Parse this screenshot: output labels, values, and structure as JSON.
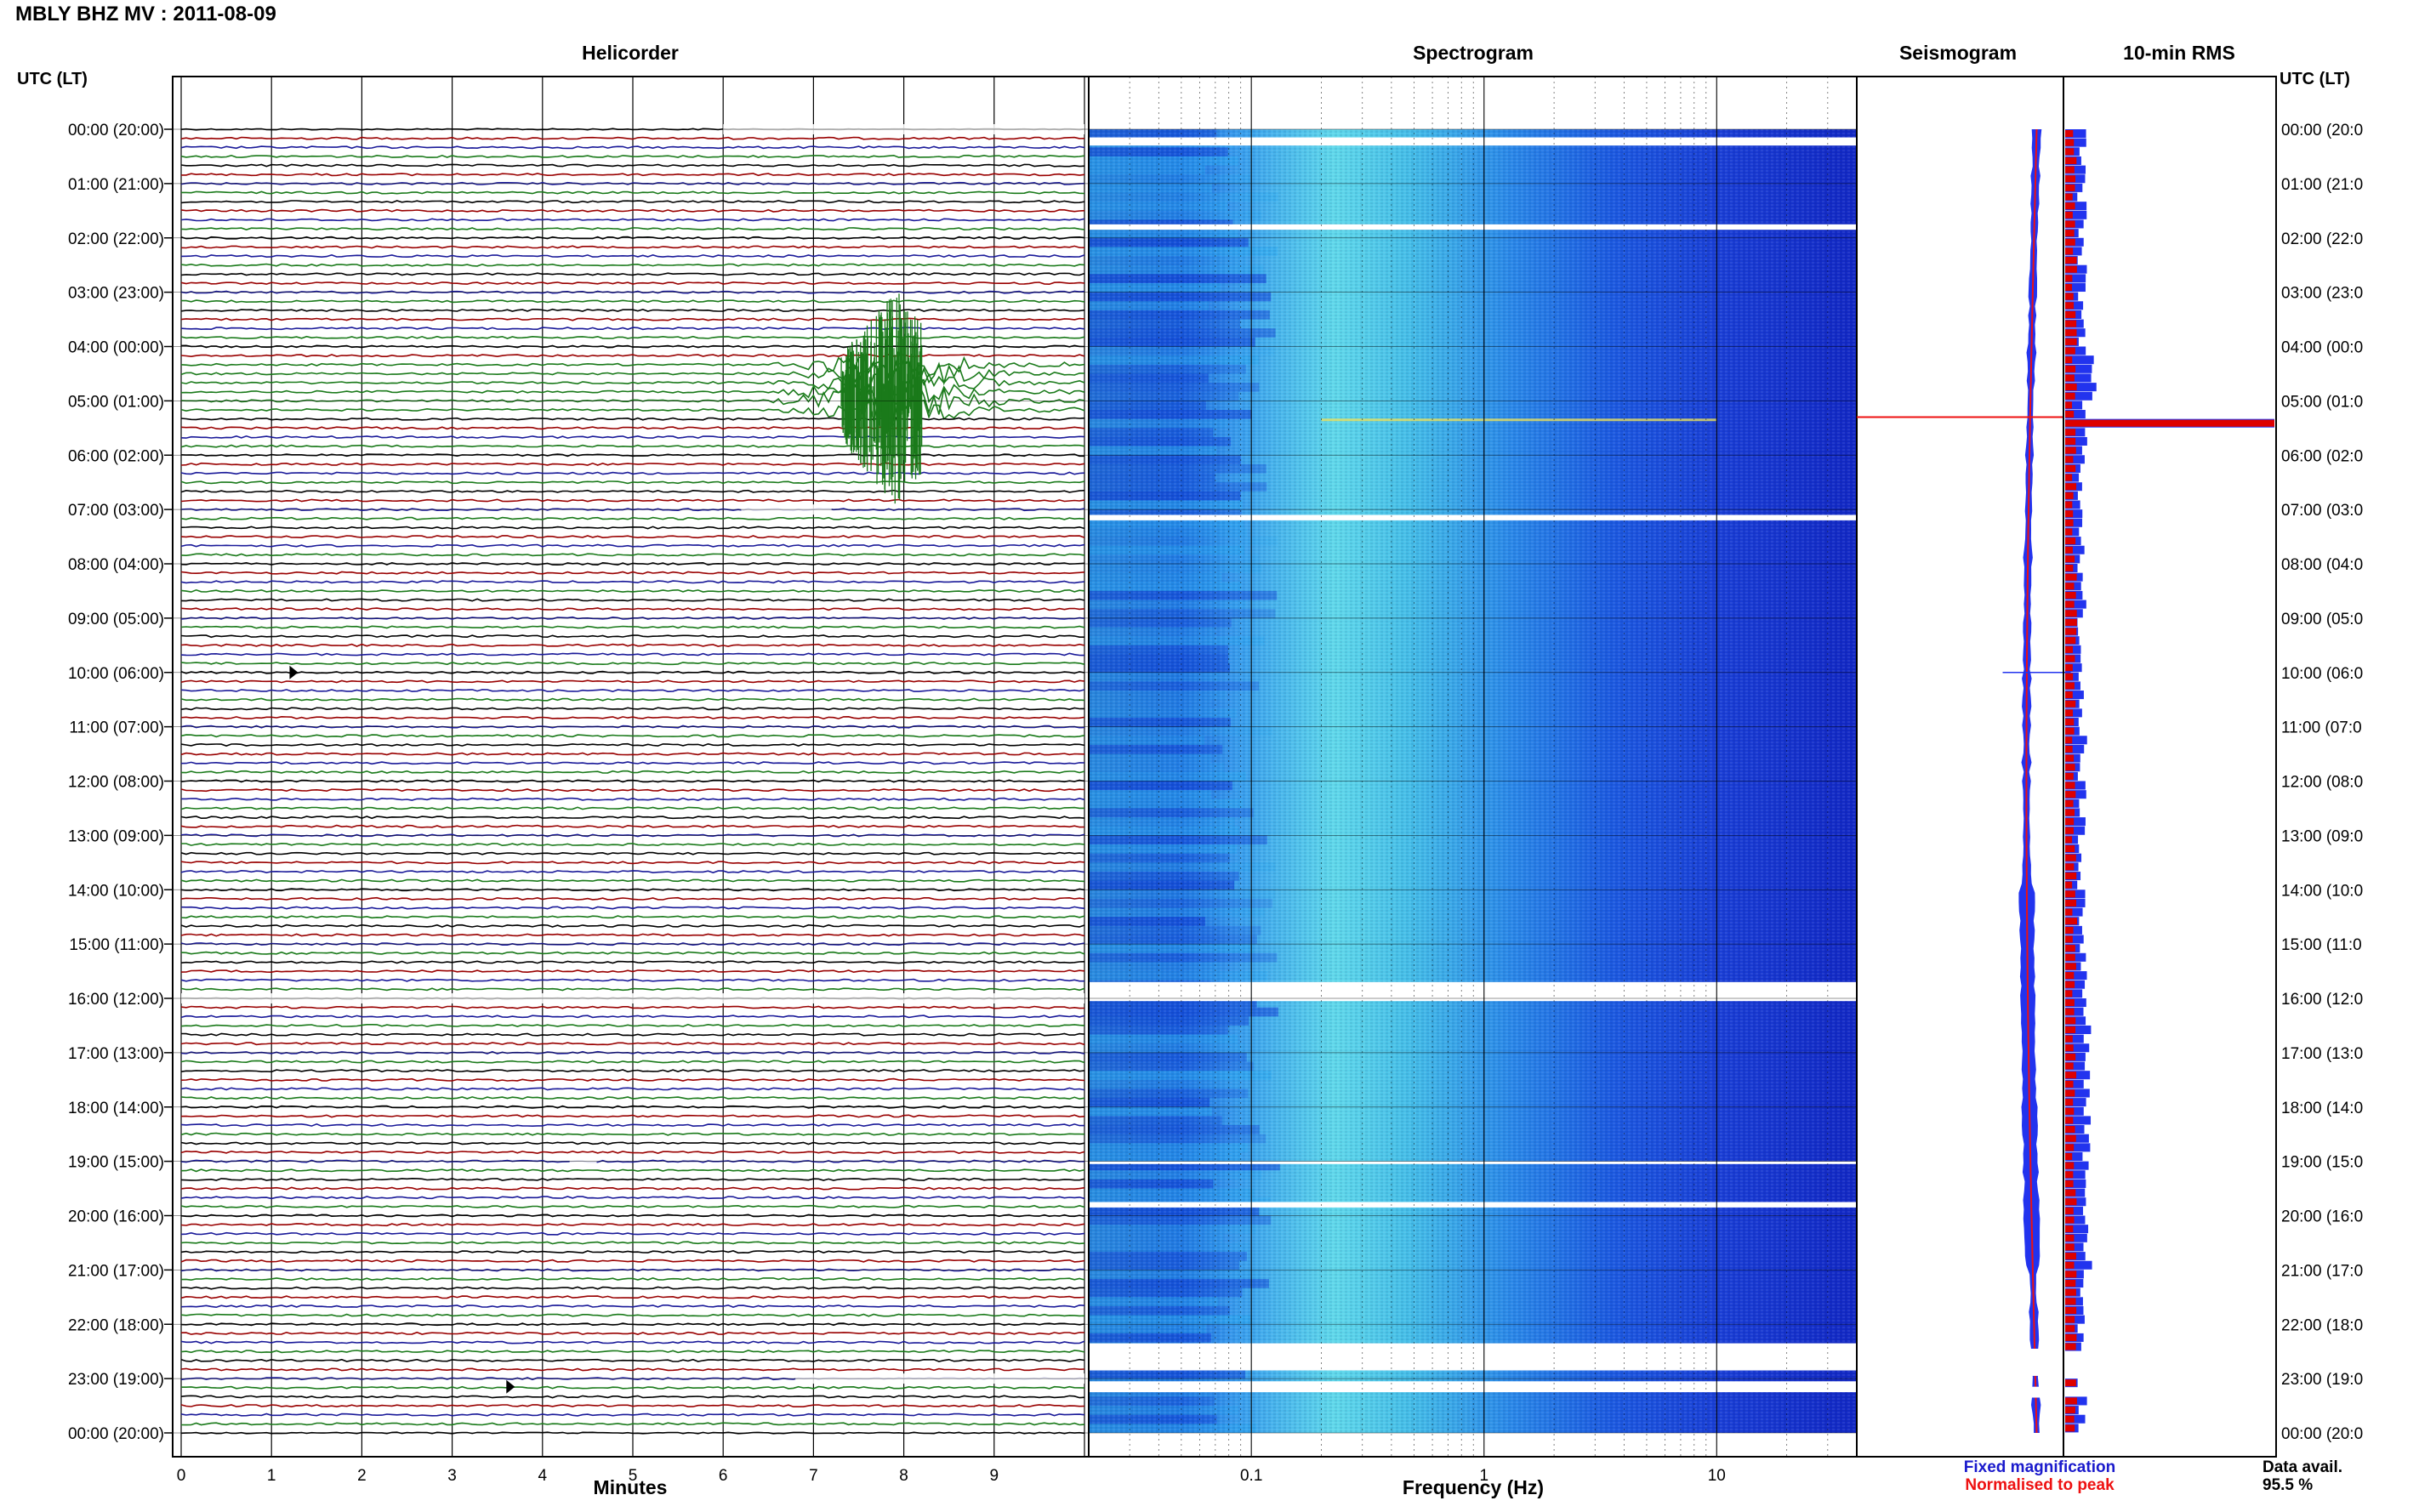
{
  "header": {
    "title": "MBLY BHZ MV : 2011-08-09"
  },
  "panels": {
    "helicorder": "Helicorder",
    "spectrogram": "Spectrogram",
    "seismogram": "Seismogram",
    "rms": "10-min RMS"
  },
  "axes": {
    "left_time_label": "UTC (LT)",
    "right_time_label": "UTC (LT)",
    "minutes_label": "Minutes",
    "frequency_label": "Frequency (Hz)"
  },
  "time_labels_left": [
    "00:00 (20:00)",
    "01:00 (21:00)",
    "02:00 (22:00)",
    "03:00 (23:00)",
    "04:00 (00:00)",
    "05:00 (01:00)",
    "06:00 (02:00)",
    "07:00 (03:00)",
    "08:00 (04:00)",
    "09:00 (05:00)",
    "10:00 (06:00)",
    "11:00 (07:00)",
    "12:00 (08:00)",
    "13:00 (09:00)",
    "14:00 (10:00)",
    "15:00 (11:00)",
    "16:00 (12:00)",
    "17:00 (13:00)",
    "18:00 (14:00)",
    "19:00 (15:00)",
    "20:00 (16:00)",
    "21:00 (17:00)",
    "22:00 (18:00)",
    "23:00 (19:00)",
    "00:00 (20:00)"
  ],
  "time_labels_right": [
    "00:00 (20:0",
    "01:00 (21:0",
    "02:00 (22:0",
    "03:00 (23:0",
    "04:00 (00:0",
    "05:00 (01:0",
    "06:00 (02:0",
    "07:00 (03:0",
    "08:00 (04:0",
    "09:00 (05:0",
    "10:00 (06:0",
    "11:00 (07:0",
    "12:00 (08:0",
    "13:00 (09:0",
    "14:00 (10:0",
    "15:00 (11:0",
    "16:00 (12:0",
    "17:00 (13:0",
    "18:00 (14:0",
    "19:00 (15:0",
    "20:00 (16:0",
    "21:00 (17:0",
    "22:00 (18:0",
    "23:00 (19:0",
    "00:00 (20:0"
  ],
  "minute_ticks": [
    "0",
    "1",
    "2",
    "3",
    "4",
    "5",
    "6",
    "7",
    "8",
    "9"
  ],
  "frequency_ticks": [
    "0.1",
    "1",
    "10"
  ],
  "legend": {
    "fixed": "Fixed magnification",
    "normalised": "Normalised to peak",
    "fixed_color": "#1a1acc",
    "normalised_color": "#ee1111"
  },
  "data_availability": {
    "label": "Data avail.",
    "value": "95.5 %"
  },
  "colors": {
    "trace_cycle": [
      "#000000",
      "#990000",
      "#1a1a99",
      "#1a7a1a"
    ],
    "spectrogram_low": "#0022cc",
    "spectrogram_high": "#55ddee",
    "rms_fixed": "#2233ee",
    "rms_norm": "#dd0000"
  },
  "chart_data": {
    "type": "heatmap",
    "station": "MBLY BHZ MV",
    "date": "2011-08-09",
    "helicorder_minutes_range": [
      0,
      10
    ],
    "frequency_range_hz": [
      0.02,
      40
    ],
    "frequency_scale": "log",
    "time_range_utc_hours": [
      0,
      24
    ],
    "rows_per_hour": 6,
    "events": [
      {
        "time_utc": "05:00",
        "minute": 7.9,
        "peak_rows": 4,
        "description_hidden": true
      },
      {
        "time_utc": "10:00",
        "minute": 1.2
      },
      {
        "time_utc": "23:00",
        "minute": 3.6
      }
    ],
    "data_gaps_utc": [
      "00:00",
      "07:00",
      "16:00",
      "19:00",
      "22:40",
      "23:10"
    ],
    "data_availability_percent": 95.5
  }
}
